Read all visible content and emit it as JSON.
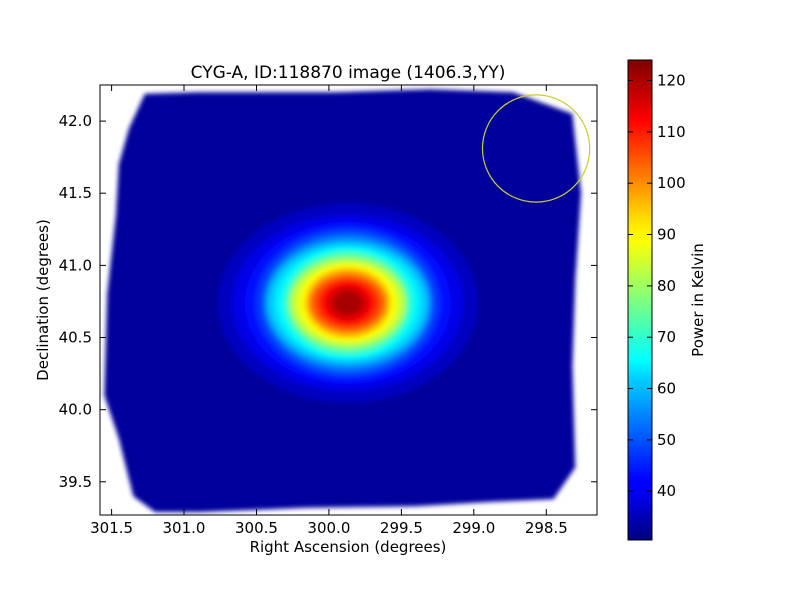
{
  "chart_data": {
    "type": "heatmap",
    "title": "CYG-A, ID:118870 image (1406.3,YY)",
    "xlabel": "Right Ascension (degrees)",
    "ylabel": "Declination (degrees)",
    "colorbar_label": "Power in Kelvin",
    "colormap": "jet",
    "x_axis_inverted": true,
    "xlim": [
      301.58,
      298.15
    ],
    "ylim": [
      39.27,
      42.25
    ],
    "x_ticks": [
      301.5,
      301.0,
      300.5,
      300.0,
      299.5,
      299.0,
      298.5
    ],
    "x_tick_labels": [
      "301.5",
      "301.0",
      "300.5",
      "300.0",
      "299.5",
      "299.0",
      "298.5"
    ],
    "y_ticks": [
      39.5,
      40.0,
      40.5,
      41.0,
      41.5,
      42.0
    ],
    "y_tick_labels": [
      "39.5",
      "40.0",
      "40.5",
      "41.0",
      "41.5",
      "42.0"
    ],
    "color_range": [
      30.5,
      124
    ],
    "colorbar_ticks": [
      40,
      50,
      60,
      70,
      80,
      90,
      100,
      110,
      120
    ],
    "colorbar_tick_labels": [
      "40",
      "50",
      "60",
      "70",
      "80",
      "90",
      "100",
      "110",
      "120"
    ],
    "background_level": 33,
    "source": {
      "ra": 299.87,
      "dec": 40.74,
      "peak": 124,
      "sigma_ra": 0.34,
      "sigma_dec": 0.27
    },
    "footprint_corners_ra_dec": [
      [
        301.27,
        42.19
      ],
      [
        300.9,
        42.2
      ],
      [
        300.3,
        42.2
      ],
      [
        299.95,
        42.2
      ],
      [
        299.3,
        42.22
      ],
      [
        298.73,
        42.2
      ],
      [
        298.32,
        42.05
      ],
      [
        298.26,
        41.5
      ],
      [
        298.3,
        40.9
      ],
      [
        298.32,
        40.3
      ],
      [
        298.3,
        39.6
      ],
      [
        298.45,
        39.38
      ],
      [
        298.9,
        39.36
      ],
      [
        299.4,
        39.33
      ],
      [
        300.15,
        39.32
      ],
      [
        300.9,
        39.29
      ],
      [
        301.2,
        39.29
      ],
      [
        301.35,
        39.4
      ],
      [
        301.45,
        39.8
      ],
      [
        301.55,
        40.1
      ],
      [
        301.53,
        40.8
      ],
      [
        301.47,
        41.35
      ],
      [
        301.45,
        41.7
      ],
      [
        301.38,
        41.95
      ]
    ],
    "annotation_circle": {
      "ra": 298.57,
      "dec": 41.81,
      "radius_deg": 0.37,
      "color": "#cccc33"
    }
  }
}
